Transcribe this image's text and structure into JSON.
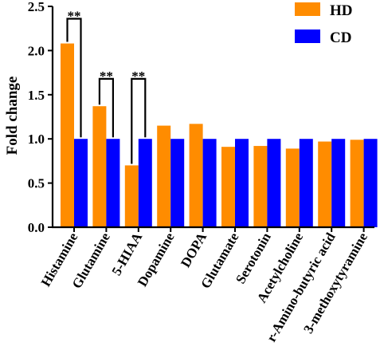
{
  "chart_data": {
    "type": "bar",
    "title": "",
    "xlabel": "",
    "ylabel": "Fold change",
    "ylim": [
      0,
      2.5
    ],
    "yticks": [
      "0.0",
      "0.5",
      "1.0",
      "1.5",
      "2.0",
      "2.5"
    ],
    "categories": [
      "Histamine",
      "Glutamine",
      "5-HIAA",
      "Dopamine",
      "DOPA",
      "Glutamate",
      "Serotonin",
      "Acetylcholine",
      "r-Amino-butyric acid",
      "3-methoxytyramine"
    ],
    "series": [
      {
        "name": "HD",
        "color": "#FF8C00",
        "values": [
          2.08,
          1.37,
          0.7,
          1.15,
          1.17,
          0.91,
          0.92,
          0.89,
          0.97,
          0.99
        ]
      },
      {
        "name": "CD",
        "color": "#0000FF",
        "values": [
          1.0,
          1.0,
          1.0,
          1.0,
          1.0,
          1.0,
          1.0,
          1.0,
          1.0,
          1.0
        ]
      }
    ],
    "legend_position": "top-right",
    "grid": false,
    "annotations": [
      {
        "category": "Histamine",
        "text": "**"
      },
      {
        "category": "Glutamine",
        "text": "**"
      },
      {
        "category": "5-HIAA",
        "text": "**"
      }
    ]
  }
}
